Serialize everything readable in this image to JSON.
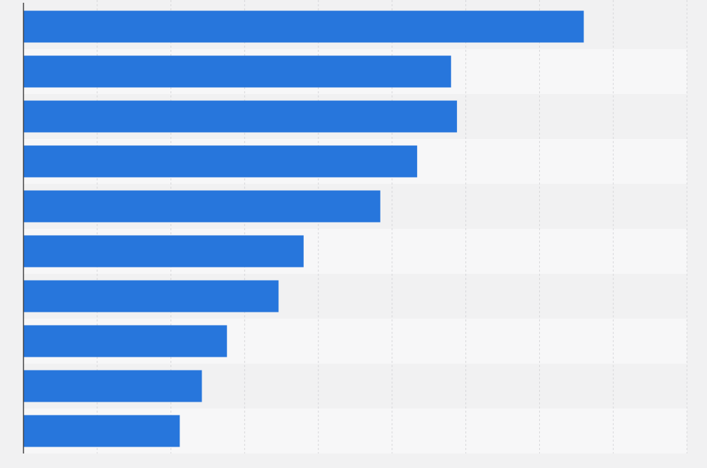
{
  "chart_data": {
    "type": "bar",
    "orientation": "horizontal",
    "title": "",
    "xlabel": "",
    "ylabel": "",
    "categories": [
      "",
      "",
      "",
      "",
      "",
      "",
      "",
      "",
      "",
      ""
    ],
    "values": [
      76,
      58,
      58.8,
      53.4,
      48.4,
      38,
      34.6,
      27.6,
      24.2,
      21.2
    ],
    "xlim": [
      0,
      90
    ],
    "x_gridlines": [
      0,
      10,
      20,
      30,
      40,
      50,
      60,
      70,
      80,
      90
    ],
    "grid": true,
    "legend": "none",
    "colors": {
      "bar": "#2776dc",
      "background": "#f1f1f2",
      "band_light": "#f7f7f8",
      "band_dark": "#f1f1f2",
      "grid": "#d6d6d9",
      "axis": "#444444"
    }
  }
}
